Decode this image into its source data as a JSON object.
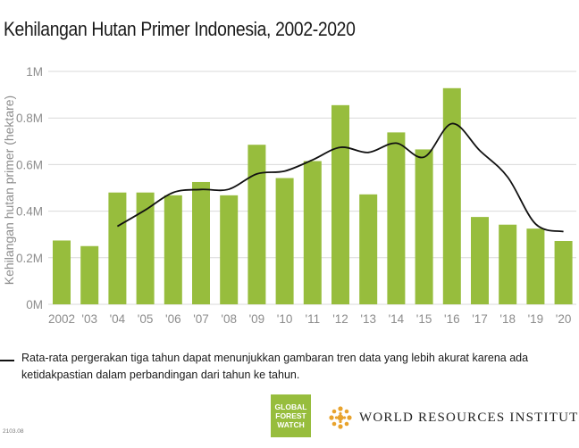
{
  "title": "Kehilangan Hutan Primer Indonesia, 2002-2020",
  "legend_text": "Rata-rata pergerakan tiga tahun dapat menunjukkan gambaran tren data yang lebih akurat karena ada ketidakpastian dalam perbandingan dari tahun ke tahun.",
  "logos": {
    "gfw_lines": [
      "GLOBAL",
      "FOREST",
      "WATCH"
    ],
    "wri_name": "WORLD RESOURCES INSTITUTE"
  },
  "version": "2103.08",
  "colors": {
    "bar": "#97BD3D",
    "line": "#111111",
    "grid": "#d9d9d9",
    "axis_text": "#8c8c8c",
    "wri_logo": "#E8A32D"
  },
  "chart_data": {
    "type": "bar",
    "ylabel": "Kehilangan hutan primer (hektare)",
    "ylim": [
      0,
      1000000
    ],
    "yticks": [
      0,
      200000,
      400000,
      600000,
      800000,
      1000000
    ],
    "ytick_labels": [
      "0M",
      "0.2M",
      "0.4M",
      "0.6M",
      "0.8M",
      "1M"
    ],
    "grid": true,
    "categories": [
      "2002",
      "'03",
      "'04",
      "'05",
      "'06",
      "'07",
      "'08",
      "'09",
      "'10",
      "'11",
      "'12",
      "'13",
      "'14",
      "'15",
      "'16",
      "'17",
      "'18",
      "'19",
      "'20"
    ],
    "values": [
      274000,
      250000,
      480000,
      480000,
      468000,
      525000,
      468000,
      685000,
      542000,
      615000,
      855000,
      472000,
      738000,
      665000,
      928000,
      375000,
      342000,
      325000,
      272000
    ],
    "moving_average": {
      "start_index": 2,
      "values": [
        335000,
        405000,
        480000,
        493000,
        494000,
        560000,
        572000,
        620000,
        674000,
        652000,
        692000,
        632000,
        776000,
        660000,
        546000,
        345000,
        312000
      ]
    }
  }
}
